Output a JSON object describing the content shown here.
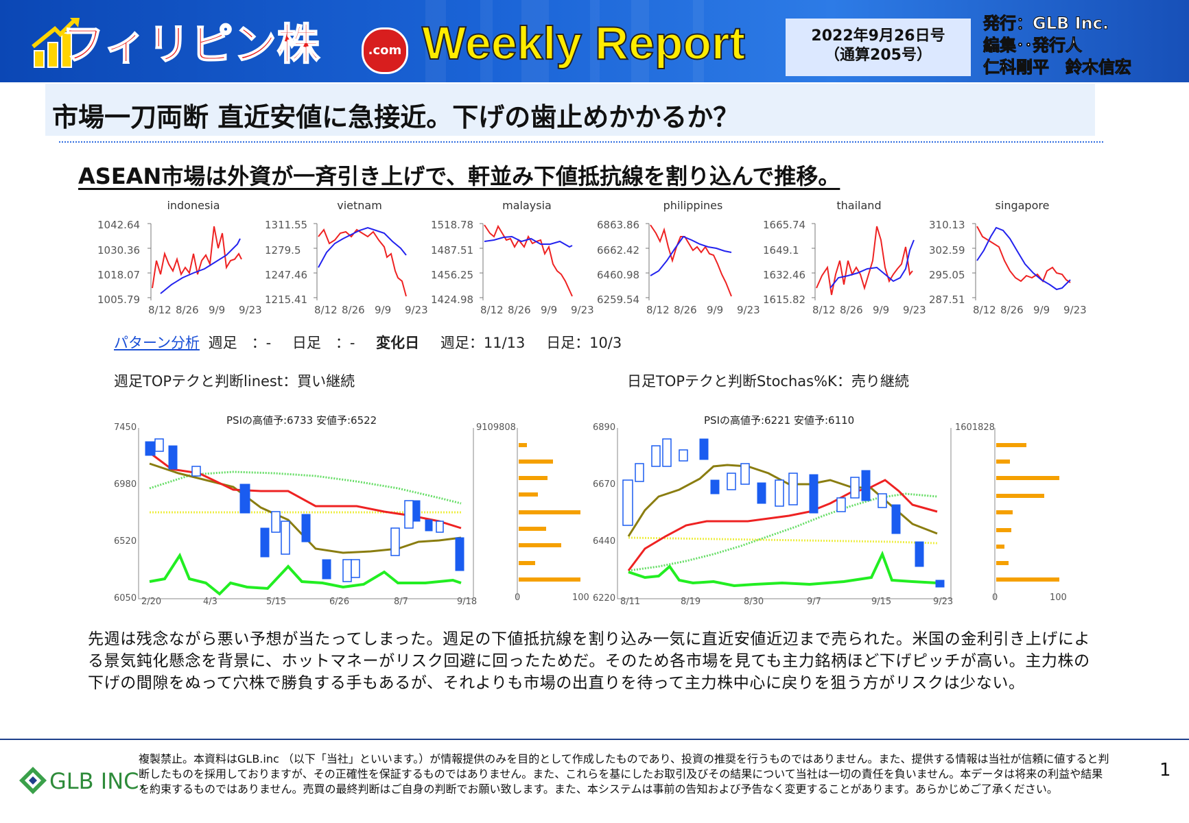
{
  "header": {
    "brand": "フィリピン株",
    "brand_suffix": ".com",
    "title": "Weekly Report",
    "issue_date": "2022年9月26日号",
    "issue_number": "（通算205号）",
    "publisher_lines": [
      "発行：GLB Inc.",
      "編集･･発行人",
      "仁科剛平　鈴木信宏"
    ]
  },
  "headline": "市場一刀両断 直近安値に急接近。下げの歯止めかかるか？",
  "subheadline": "ASEAN市場は外資が一斉引き上げで、軒並み下値抵抗線を割り込んで推移。",
  "markets": {
    "x_ticks": [
      "8/12",
      "8/26",
      "9/9",
      "9/23"
    ],
    "items": [
      {
        "name": "indonesia",
        "yticks": [
          "1042.64",
          "1030.36",
          "1018.07",
          "1005.79"
        ]
      },
      {
        "name": "vietnam",
        "yticks": [
          "1311.55",
          "1279.5",
          "1247.46",
          "1215.41"
        ]
      },
      {
        "name": "malaysia",
        "yticks": [
          "1518.78",
          "1487.51",
          "1456.25",
          "1424.98"
        ]
      },
      {
        "name": "philippines",
        "yticks": [
          "6863.86",
          "6662.42",
          "6460.98",
          "6259.54"
        ]
      },
      {
        "name": "thailand",
        "yticks": [
          "1665.74",
          "1649.1",
          "1632.46",
          "1615.82"
        ]
      },
      {
        "name": "singapore",
        "yticks": [
          "310.13",
          "302.59",
          "295.05",
          "287.51"
        ]
      }
    ]
  },
  "pattern": {
    "link": "パターン分析",
    "weekly_label": "週足　：-",
    "daily_label": "日足　：-",
    "change_label": "変化日",
    "change_weekly": "週足：11/13",
    "change_daily": "日足：10/3"
  },
  "weekly_chart": {
    "title": "週足TOPテクと判断linest：買い継続",
    "caption": "PSIの高値予:6733 安値予:6522",
    "yticks": [
      "7450",
      "6980",
      "6520",
      "6050"
    ],
    "xticks": [
      "2/20",
      "4/3",
      "5/15",
      "6/26",
      "8/7",
      "9/18"
    ],
    "volume_max": "9109808",
    "hist_ticks": [
      "0",
      "100"
    ]
  },
  "daily_chart": {
    "title": "日足TOPテクと判断Stochas%K：売り継続",
    "caption": "PSIの高値予:6221 安値予:6110",
    "yticks": [
      "6890",
      "6670",
      "6440",
      "6220"
    ],
    "xticks": [
      "8/11",
      "8/19",
      "8/30",
      "9/7",
      "9/15",
      "9/23"
    ],
    "volume_max": "1601828",
    "hist_ticks": [
      "0",
      "100"
    ]
  },
  "body": "先週は残念ながら悪い予想が当たってしまった。週足の下値抵抗線を割り込み一気に直近安値近辺まで売られた。米国の金利引き上げによる景気鈍化懸念を背景に、ホットマネーがリスク回避に回ったためだ。そのため各市場を見ても主力銘柄ほど下げピッチが高い。主力株の下げの間隙をぬって穴株で勝負する手もあるが、それよりも市場の出直りを待って主力株中心に戻りを狙う方がリスクは少ない。",
  "footer": {
    "logo": "GLB INC.",
    "disclaimer": "複製禁止。本資料はGLB.inc （以下「当社」といいます。）が情報提供のみを目的として作成したものであり、投資の推奨を行うものではありません。また、提供する情報は当社が信頼に値すると判断したものを採用しておりますが、その正確性を保証するものではありません。また、これらを基にしたお取引及びその結果について当社は一切の責任を負いません。本データは将来の利益や結果を約束するものではありません。売買の最終判断はご自身の判断でお願い致します。また、本システムは事前の告知および予告なく変更することがあります。あらかじめご了承ください。",
    "page": "1"
  },
  "colors": {
    "brand_red": "#e8201f",
    "title_yellow": "#ffec00",
    "banner_blue": "#1a63d6",
    "price_red": "#ee2222",
    "trend_blue": "#2222ee",
    "candle_blue": "#1a5cf0",
    "ma_olive": "#8a7d10",
    "signal_green": "#22ee22",
    "histogram_orange": "#f5a000"
  }
}
